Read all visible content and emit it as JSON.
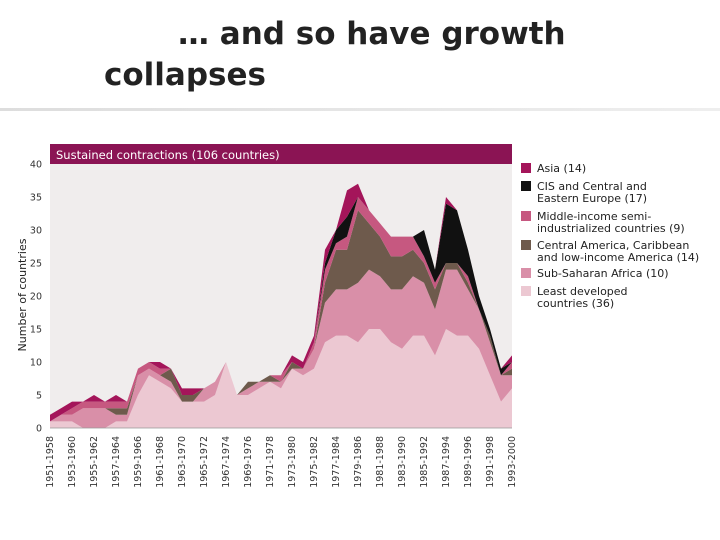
{
  "slide": {
    "title_line1": "… and so have growth",
    "title_line2": "collapses"
  },
  "colors": {
    "banner": "#8b1454",
    "plot_bg": "#f0eded",
    "asia": "#a4155a",
    "cis": "#111111",
    "middle_income": "#c65880",
    "central_america": "#6e5a4c",
    "subsaharan": "#d98fa8",
    "ldc": "#ecc8d2"
  },
  "chart_data": {
    "type": "area",
    "stacked": true,
    "title": "Sustained contractions (106 countries)",
    "ylabel": "Number of countries",
    "ylim": [
      0,
      40
    ],
    "yticks": [
      0,
      5,
      10,
      15,
      20,
      25,
      30,
      35,
      40
    ],
    "x_labels": [
      "1951-1958",
      "1953-1960",
      "1955-1962",
      "1957-1964",
      "1959-1966",
      "1961-1968",
      "1963-1970",
      "1965-1972",
      "1967-1974",
      "1969-1976",
      "1971-1978",
      "1973-1980",
      "1975-1982",
      "1977-1984",
      "1979-1986",
      "1981-1988",
      "1983-1990",
      "1985-1992",
      "1987-1994",
      "1989-1996",
      "1991-1998",
      "1993-2000"
    ],
    "x": [
      "1951-1958",
      "1952-1959",
      "1953-1960",
      "1954-1961",
      "1955-1962",
      "1956-1963",
      "1957-1964",
      "1958-1965",
      "1959-1966",
      "1960-1967",
      "1961-1968",
      "1962-1969",
      "1963-1970",
      "1964-1971",
      "1965-1972",
      "1966-1973",
      "1967-1974",
      "1968-1975",
      "1969-1976",
      "1970-1977",
      "1971-1978",
      "1972-1979",
      "1973-1980",
      "1974-1981",
      "1975-1982",
      "1976-1983",
      "1977-1984",
      "1978-1985",
      "1979-1986",
      "1980-1987",
      "1981-1988",
      "1982-1989",
      "1983-1990",
      "1984-1991",
      "1985-1992",
      "1986-1993",
      "1987-1994",
      "1988-1995",
      "1989-1996",
      "1990-1997",
      "1991-1998",
      "1992-1999",
      "1993-2000"
    ],
    "legend_position": "right",
    "series": [
      {
        "name": "Least developed countries (36)",
        "color_key": "ldc",
        "values": [
          1,
          1,
          1,
          0,
          0,
          0,
          1,
          1,
          5,
          8,
          7,
          6,
          4,
          4,
          4,
          5,
          10,
          5,
          5,
          6,
          7,
          6,
          9,
          8,
          9,
          13,
          14,
          14,
          13,
          15,
          15,
          13,
          12,
          14,
          14,
          11,
          15,
          14,
          14,
          12,
          8,
          4,
          6
        ]
      },
      {
        "name": "Sub-Saharan Africa (10)",
        "color_key": "subsaharan",
        "values": [
          0,
          1,
          1,
          3,
          3,
          3,
          1,
          1,
          3,
          1,
          1,
          1,
          0,
          0,
          2,
          2,
          0,
          0,
          1,
          1,
          0,
          1,
          0,
          1,
          3,
          6,
          7,
          7,
          9,
          9,
          8,
          8,
          9,
          9,
          8,
          7,
          9,
          10,
          7,
          6,
          5,
          4,
          2
        ]
      },
      {
        "name": "Central America, Caribbean and low-income America (14)",
        "color_key": "central_america",
        "values": [
          0,
          0,
          0,
          0,
          0,
          0,
          1,
          1,
          0,
          0,
          0,
          2,
          1,
          1,
          0,
          0,
          0,
          0,
          1,
          0,
          1,
          0,
          1,
          0,
          0,
          3,
          6,
          6,
          11,
          7,
          6,
          5,
          5,
          4,
          3,
          3,
          1,
          1,
          1,
          0,
          1,
          0,
          1
        ]
      },
      {
        "name": "Middle-income semi-industrialized countries (9)",
        "color_key": "middle_income",
        "values": [
          0,
          0,
          1,
          1,
          1,
          1,
          1,
          1,
          1,
          1,
          1,
          0,
          0,
          0,
          0,
          0,
          0,
          0,
          0,
          0,
          0,
          1,
          0,
          0,
          1,
          2,
          1,
          2,
          2,
          2,
          2,
          3,
          3,
          2,
          1,
          1,
          0,
          0,
          1,
          0,
          0,
          0,
          1
        ]
      },
      {
        "name": "CIS and Central and Eastern Europe (17)",
        "color_key": "cis",
        "values": [
          0,
          0,
          0,
          0,
          0,
          0,
          0,
          0,
          0,
          0,
          0,
          0,
          0,
          0,
          0,
          0,
          0,
          0,
          0,
          0,
          0,
          0,
          0,
          0,
          0,
          1,
          2,
          3,
          0,
          0,
          0,
          0,
          0,
          0,
          4,
          2,
          9,
          8,
          4,
          2,
          1,
          1,
          0
        ]
      },
      {
        "name": "Asia (14)",
        "color_key": "asia",
        "values": [
          1,
          1,
          1,
          0,
          1,
          0,
          1,
          0,
          0,
          0,
          1,
          0,
          1,
          1,
          0,
          0,
          0,
          0,
          0,
          0,
          0,
          0,
          1,
          1,
          1,
          2,
          0,
          4,
          2,
          0,
          0,
          0,
          0,
          0,
          0,
          0,
          1,
          0,
          0,
          0,
          0,
          0,
          1
        ]
      }
    ]
  }
}
